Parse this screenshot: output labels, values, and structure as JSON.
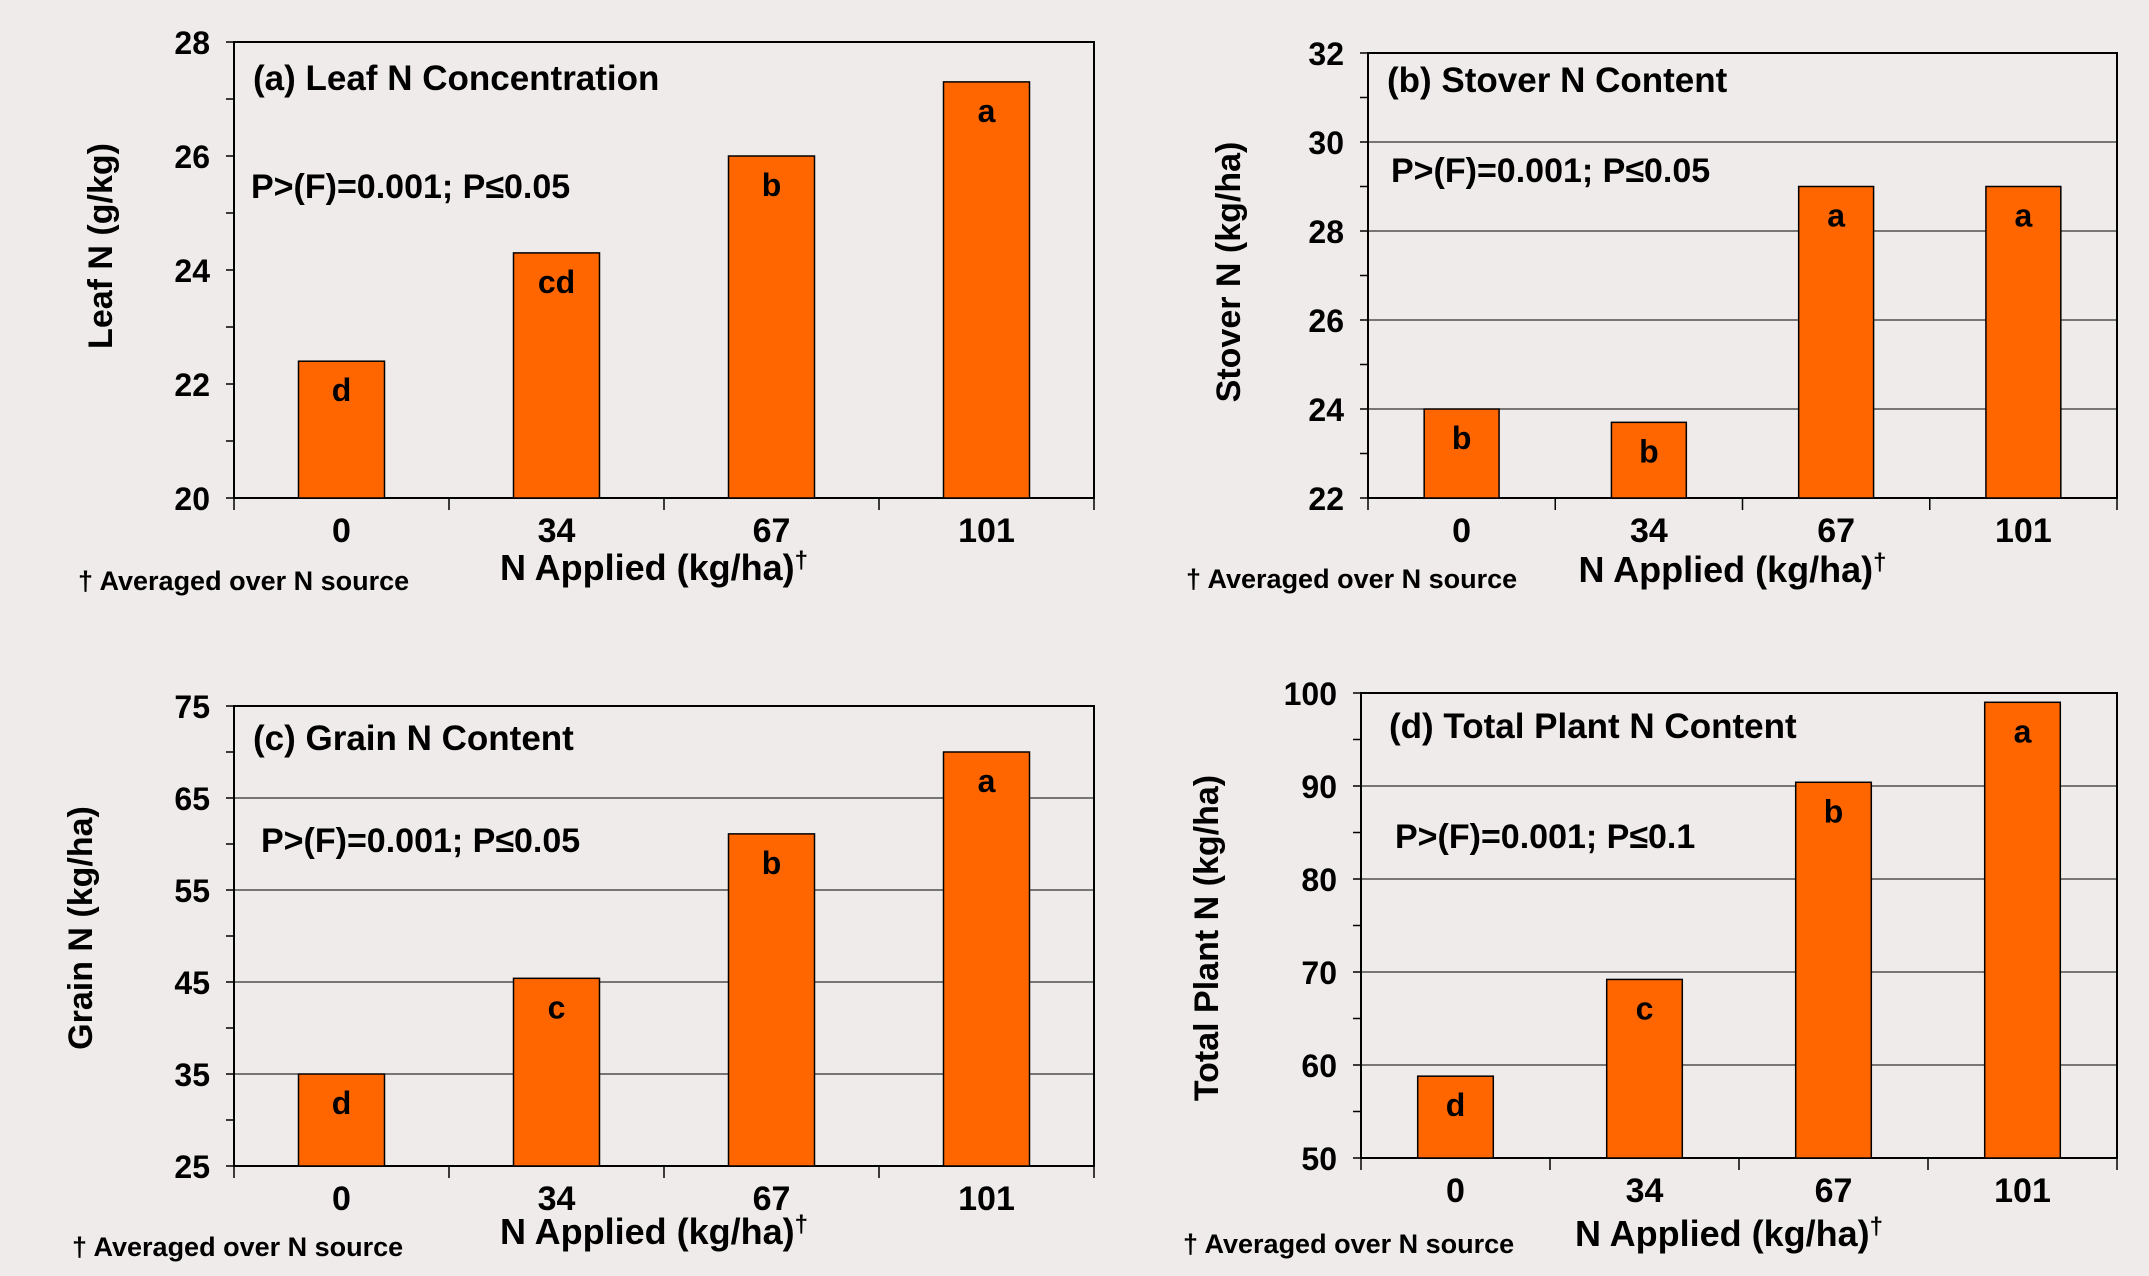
{
  "chart_data": [
    {
      "type": "bar",
      "title": "(a) Leaf N Concentration",
      "annotation": "P>(F)=0.001; P≤0.05",
      "categories": [
        "0",
        "34",
        "67",
        "101"
      ],
      "values": [
        22.4,
        24.3,
        26.0,
        27.3
      ],
      "bar_labels": [
        "d",
        "cd",
        "b",
        "a"
      ],
      "xlabel": "N Applied (kg/ha)",
      "xlabel_mark": "†",
      "ylabel": "Leaf N (g/kg)",
      "ylim": [
        20,
        28
      ],
      "yticks": [
        20,
        22,
        24,
        26,
        28
      ],
      "footnote": "† Averaged over N source",
      "grid": false
    },
    {
      "type": "bar",
      "title": "(b) Stover N Content",
      "annotation": "P>(F)=0.001; P≤0.05",
      "categories": [
        "0",
        "34",
        "67",
        "101"
      ],
      "values": [
        24.0,
        23.7,
        29.0,
        29.0
      ],
      "bar_labels": [
        "b",
        "b",
        "a",
        "a"
      ],
      "xlabel": "N Applied (kg/ha)",
      "xlabel_mark": "†",
      "ylabel": "Stover N (kg/ha)",
      "ylim": [
        22,
        32
      ],
      "yticks": [
        22,
        24,
        26,
        28,
        30,
        32
      ],
      "footnote": "† Averaged over N source",
      "grid": true
    },
    {
      "type": "bar",
      "title": "(c) Grain N Content",
      "annotation": "P>(F)=0.001; P≤0.05",
      "categories": [
        "0",
        "34",
        "67",
        "101"
      ],
      "values": [
        35,
        45.4,
        61.1,
        70.0
      ],
      "bar_labels": [
        "d",
        "c",
        "b",
        "a"
      ],
      "xlabel": "N Applied (kg/ha)",
      "xlabel_mark": "†",
      "ylabel": "Grain N (kg/ha)",
      "ylim": [
        25,
        75
      ],
      "yticks": [
        25,
        35,
        45,
        55,
        65,
        75
      ],
      "footnote": "† Averaged over N source",
      "grid": true
    },
    {
      "type": "bar",
      "title": "(d) Total Plant N Content",
      "annotation": "P>(F)=0.001; P≤0.1",
      "categories": [
        "0",
        "34",
        "67",
        "101"
      ],
      "values": [
        58.8,
        69.2,
        90.4,
        99.0
      ],
      "bar_labels": [
        "d",
        "c",
        "b",
        "a"
      ],
      "xlabel": "N Applied (kg/ha)",
      "xlabel_mark": "†",
      "ylabel": "Total Plant N (kg/ha)",
      "ylim": [
        50,
        100
      ],
      "yticks": [
        50,
        60,
        70,
        80,
        90,
        100
      ],
      "footnote": "† Averaged over N source",
      "grid": true
    }
  ],
  "colors": {
    "background": "#efebea",
    "plot_area": "#efebea",
    "bar_fill": "#ff6600",
    "bar_stroke": "#000000",
    "grid": "#000000"
  }
}
